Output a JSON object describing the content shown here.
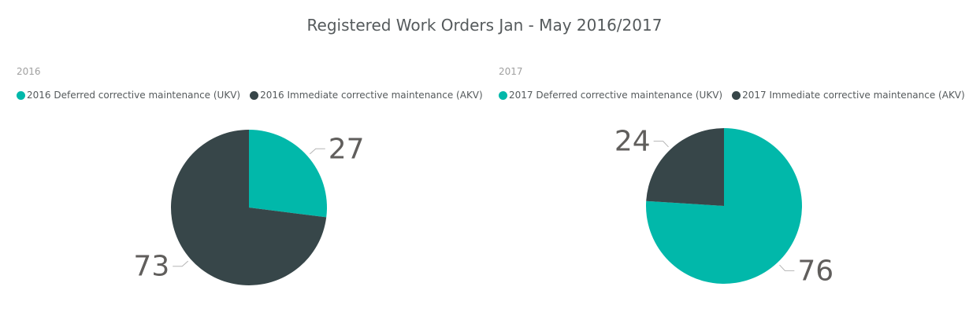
{
  "title": "Registered Work Orders Jan - May 2016/2017",
  "colors": {
    "deferred": "#01b8aa",
    "immediate": "#374649",
    "leader": "#b5b5b5",
    "label": "#605e5c"
  },
  "chart_data": [
    {
      "type": "pie",
      "title": "2016",
      "legend_position": "top-left",
      "categories": [
        "2016 Deferred corrective maintenance (UKV)",
        "2016 Immediate corrective maintenance (AKV)"
      ],
      "values": [
        27,
        73
      ],
      "data_labels": [
        "27",
        "73"
      ]
    },
    {
      "type": "pie",
      "title": "2017",
      "legend_position": "top-left",
      "categories": [
        "2017 Deferred corrective maintenance (UKV)",
        "2017 Immediate corrective maintenance (AKV)"
      ],
      "values": [
        76,
        24
      ],
      "data_labels": [
        "76",
        "24"
      ]
    }
  ]
}
